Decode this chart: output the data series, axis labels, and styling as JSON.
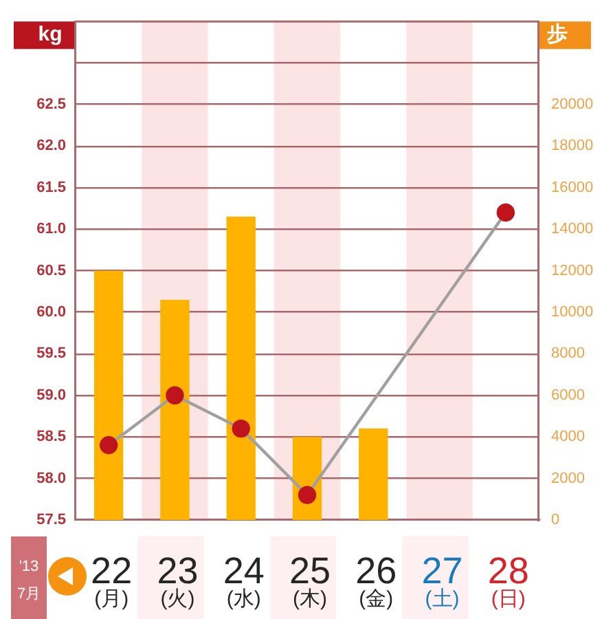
{
  "chart_data": {
    "type": "bar",
    "ylabel": "kg",
    "y2label": "歩",
    "categories": [
      "22\n(月)",
      "23\n(火)",
      "24\n(水)",
      "25\n(木)",
      "26\n(金)",
      "27\n(土)",
      "28\n(日)"
    ],
    "series": [
      {
        "axis": "y2",
        "color": "#ffb300",
        "values": [
          12000,
          10600,
          14600,
          4000,
          4400,
          null,
          null
        ]
      },
      {
        "type": "line",
        "axis": "y",
        "color": "#a0a0a0",
        "colors": [
          "#c0141c",
          "#c0141c",
          "#c0141c",
          "#c0141c",
          "#c0141c",
          "#c0141c",
          "#c0141c"
        ],
        "values": [
          58.4,
          59.0,
          58.6,
          57.8,
          null,
          null,
          61.2
        ]
      }
    ],
    "ylim": [
      57.5,
      63.5
    ],
    "yticks": [
      57.5,
      {
        "value": 58,
        "label": "58.0"
      },
      58.5,
      {
        "value": 59,
        "label": "59.0"
      },
      59.5,
      {
        "value": 60,
        "label": "60.0"
      },
      60.5,
      {
        "value": 61,
        "label": "61.0"
      },
      61.5,
      {
        "value": 62,
        "label": "62.0"
      },
      62.5,
      {
        "value": 63,
        "label": null
      }
    ],
    "y2lim": [
      0,
      24000
    ],
    "y2ticks": [
      0,
      2000,
      4000,
      6000,
      8000,
      10000,
      12000,
      14000,
      16000,
      18000,
      20000
    ],
    "bands": [
      {
        "axis": "x",
        "from": "23\n(火)",
        "to": "23\n(火)",
        "color": "#fde4e4"
      },
      {
        "axis": "x",
        "from": "25\n(木)",
        "to": "25\n(木)",
        "color": "#fde4e4"
      },
      {
        "axis": "x",
        "from": "27\n(土)",
        "to": "27\n(土)",
        "color": "#fde4e4"
      }
    ],
    "annotations": [
      "'13\n7月"
    ],
    "grid": "y",
    "marker": "circle"
  }
}
